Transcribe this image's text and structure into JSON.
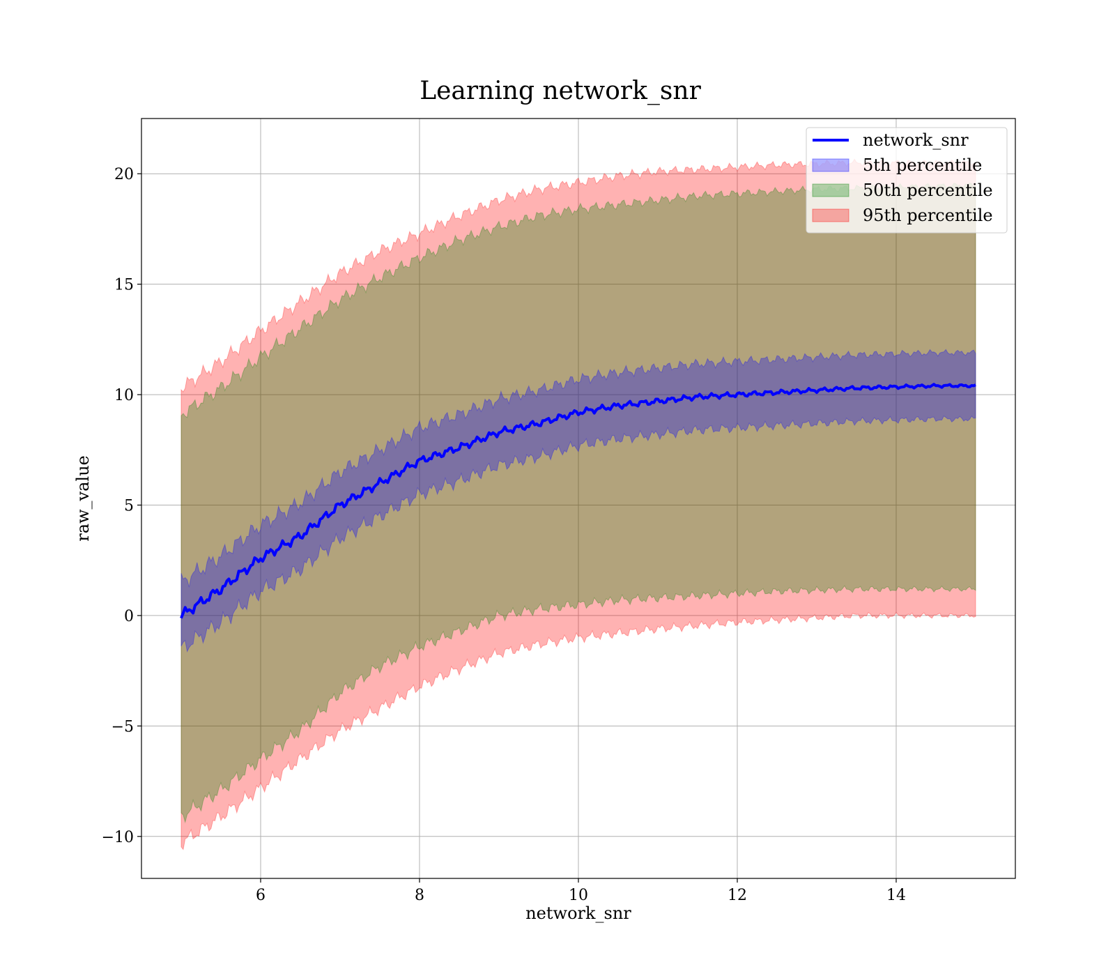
{
  "chart_data": {
    "type": "area",
    "title": "Learning network_snr",
    "xlabel": "network_snr",
    "ylabel": "raw_value",
    "xlim": [
      4.5,
      15.5
    ],
    "ylim": [
      -11.9,
      22.5
    ],
    "xticks": [
      6,
      8,
      10,
      12,
      14
    ],
    "yticks": [
      -10,
      -5,
      0,
      5,
      10,
      15,
      20
    ],
    "xtick_labels": [
      "6",
      "8",
      "10",
      "12",
      "14"
    ],
    "ytick_labels": [
      "−10",
      "−5",
      "0",
      "5",
      "10",
      "15",
      "20"
    ],
    "grid": true,
    "legend_position": "top-right",
    "x": [
      5.0,
      5.5,
      6.0,
      6.5,
      7.0,
      7.5,
      8.0,
      8.5,
      9.0,
      9.5,
      10.0,
      10.5,
      11.0,
      11.5,
      12.0,
      12.5,
      13.0,
      13.5,
      14.0,
      14.5,
      15.0
    ],
    "line": {
      "name": "network_snr",
      "color": "#0000ff",
      "values": [
        0.0,
        1.2,
        2.6,
        3.6,
        5.0,
        6.0,
        7.0,
        7.6,
        8.3,
        8.7,
        9.2,
        9.5,
        9.7,
        9.9,
        10.0,
        10.1,
        10.2,
        10.3,
        10.35,
        10.4,
        10.4
      ]
    },
    "bands": [
      {
        "name": "5th percentile",
        "color": "#0000ff",
        "lower": [
          -1.5,
          -0.3,
          1.1,
          2.1,
          3.5,
          4.5,
          5.5,
          6.1,
          6.8,
          7.2,
          7.7,
          8.0,
          8.2,
          8.4,
          8.5,
          8.6,
          8.7,
          8.8,
          8.85,
          8.9,
          8.9
        ],
        "upper": [
          1.5,
          2.7,
          4.1,
          5.1,
          6.5,
          7.5,
          8.5,
          9.1,
          9.8,
          10.2,
          10.7,
          11.0,
          11.2,
          11.4,
          11.5,
          11.6,
          11.7,
          11.8,
          11.85,
          11.9,
          11.9
        ]
      },
      {
        "name": "50th percentile",
        "color": "#008000",
        "lower": [
          -9.1,
          -7.9,
          -6.5,
          -5.2,
          -3.5,
          -2.3,
          -1.4,
          -0.7,
          0.0,
          0.3,
          0.5,
          0.7,
          0.8,
          0.9,
          1.0,
          1.1,
          1.15,
          1.2,
          1.2,
          1.2,
          1.2
        ],
        "upper": [
          9.1,
          10.3,
          11.7,
          13.0,
          14.3,
          15.3,
          16.2,
          17.0,
          17.6,
          18.1,
          18.4,
          18.6,
          18.8,
          19.0,
          19.1,
          19.2,
          19.3,
          19.35,
          19.4,
          19.45,
          19.5
        ]
      },
      {
        "name": "95th percentile",
        "color": "#ff0000",
        "lower": [
          -10.3,
          -9.1,
          -7.8,
          -6.5,
          -5.2,
          -4.2,
          -3.2,
          -2.4,
          -1.7,
          -1.3,
          -1.0,
          -0.8,
          -0.6,
          -0.45,
          -0.3,
          -0.2,
          -0.1,
          0.0,
          0.0,
          0.0,
          0.0
        ],
        "upper": [
          10.3,
          11.5,
          12.9,
          14.2,
          15.5,
          16.5,
          17.3,
          18.1,
          18.8,
          19.3,
          19.6,
          19.9,
          20.1,
          20.2,
          20.3,
          20.4,
          20.45,
          20.5,
          20.5,
          20.5,
          20.5
        ]
      }
    ]
  }
}
